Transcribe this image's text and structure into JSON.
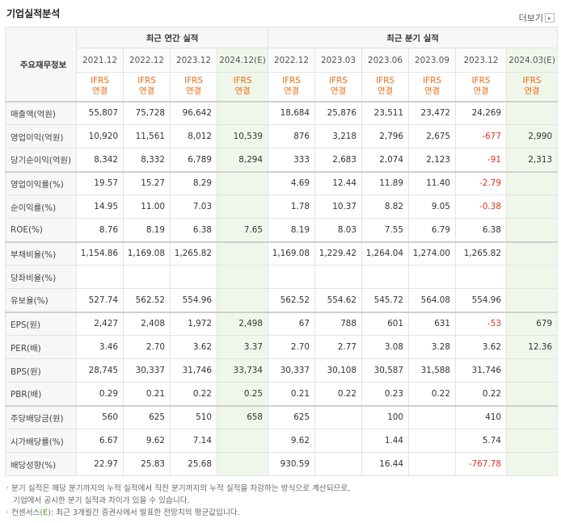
{
  "header": {
    "title": "기업실적분석",
    "more_label": "더보기"
  },
  "table": {
    "corner_label": "주요재무정보",
    "annual_group_label": "최근 연간 실적",
    "quarter_group_label": "최근 분기 실적",
    "annual_periods": [
      "2021.12",
      "2022.12",
      "2023.12",
      "2024.12(E)"
    ],
    "quarter_periods": [
      "2022.12",
      "2023.03",
      "2023.06",
      "2023.09",
      "2023.12",
      "2024.03(E)"
    ],
    "ifrs_label": "IFRS",
    "consolidated_label": "연결",
    "rows": [
      {
        "label": "매출액(억원)",
        "values": [
          "55,807",
          "75,728",
          "96,642",
          "",
          "18,684",
          "25,876",
          "23,511",
          "23,472",
          "24,269",
          ""
        ]
      },
      {
        "label": "영업이익(억원)",
        "values": [
          "10,920",
          "11,561",
          "8,012",
          "10,539",
          "876",
          "3,218",
          "2,796",
          "2,675",
          "-677",
          "2,990"
        ]
      },
      {
        "label": "당기순이익(억원)",
        "values": [
          "8,342",
          "8,332",
          "6,789",
          "8,294",
          "333",
          "2,683",
          "2,074",
          "2,123",
          "-91",
          "2,313"
        ]
      },
      {
        "label": "영업이익률(%)",
        "values": [
          "19.57",
          "15.27",
          "8.29",
          "",
          "4.69",
          "12.44",
          "11.89",
          "11.40",
          "-2.79",
          ""
        ]
      },
      {
        "label": "순이익률(%)",
        "values": [
          "14.95",
          "11.00",
          "7.03",
          "",
          "1.78",
          "10.37",
          "8.82",
          "9.05",
          "-0.38",
          ""
        ]
      },
      {
        "label": "ROE(%)",
        "values": [
          "8.76",
          "8.19",
          "6.38",
          "7.65",
          "8.19",
          "8.03",
          "7.55",
          "6.79",
          "6.38",
          ""
        ]
      },
      {
        "label": "부채비율(%)",
        "values": [
          "1,154.86",
          "1,169.08",
          "1,265.82",
          "",
          "1,169.08",
          "1,229.42",
          "1,264.04",
          "1,274.00",
          "1,265.82",
          ""
        ]
      },
      {
        "label": "당좌비율(%)",
        "values": [
          "",
          "",
          "",
          "",
          "",
          "",
          "",
          "",
          "",
          ""
        ]
      },
      {
        "label": "유보율(%)",
        "values": [
          "527.74",
          "562.52",
          "554.96",
          "",
          "562.52",
          "554.62",
          "545.72",
          "564.08",
          "554.96",
          ""
        ]
      },
      {
        "label": "EPS(원)",
        "values": [
          "2,427",
          "2,408",
          "1,972",
          "2,498",
          "67",
          "788",
          "601",
          "631",
          "-53",
          "679"
        ]
      },
      {
        "label": "PER(배)",
        "values": [
          "3.46",
          "2.70",
          "3.62",
          "3.37",
          "2.70",
          "2.77",
          "3.08",
          "3.28",
          "3.62",
          "12.36"
        ]
      },
      {
        "label": "BPS(원)",
        "values": [
          "28,745",
          "30,337",
          "31,746",
          "33,734",
          "30,337",
          "30,108",
          "30,587",
          "31,588",
          "31,746",
          ""
        ]
      },
      {
        "label": "PBR(배)",
        "values": [
          "0.29",
          "0.21",
          "0.22",
          "0.25",
          "0.21",
          "0.22",
          "0.23",
          "0.22",
          "0.22",
          ""
        ]
      },
      {
        "label": "주당배당금(원)",
        "values": [
          "560",
          "625",
          "510",
          "658",
          "625",
          "",
          "100",
          "",
          "410",
          ""
        ]
      },
      {
        "label": "시가배당률(%)",
        "values": [
          "6.67",
          "9.62",
          "7.14",
          "",
          "9.62",
          "",
          "1.44",
          "",
          "5.74",
          ""
        ]
      },
      {
        "label": "배당성향(%)",
        "values": [
          "22.97",
          "25.83",
          "25.68",
          "",
          "930.59",
          "",
          "16.44",
          "",
          "-767.78",
          ""
        ]
      }
    ]
  },
  "notes": {
    "line1": "· 분기 실적은 해당 분기까지의 누적 실적에서 직전 분기까지의 누적 실적을 차감하는 방식으로 계산되므로,",
    "line2": "기업에서 공시한 분기 실적과 차이가 있을 수 있습니다.",
    "line3_prefix": "· 컨센서스",
    "line3_e": "(E)",
    "line3_rest": ": 최근 3개월간 증권사에서 발표한 전망치의 평균값입니다."
  },
  "colors": {
    "ifrs": "#f06a0f",
    "negative": "#e0301e",
    "estimate_bg": "#eff7ea"
  }
}
